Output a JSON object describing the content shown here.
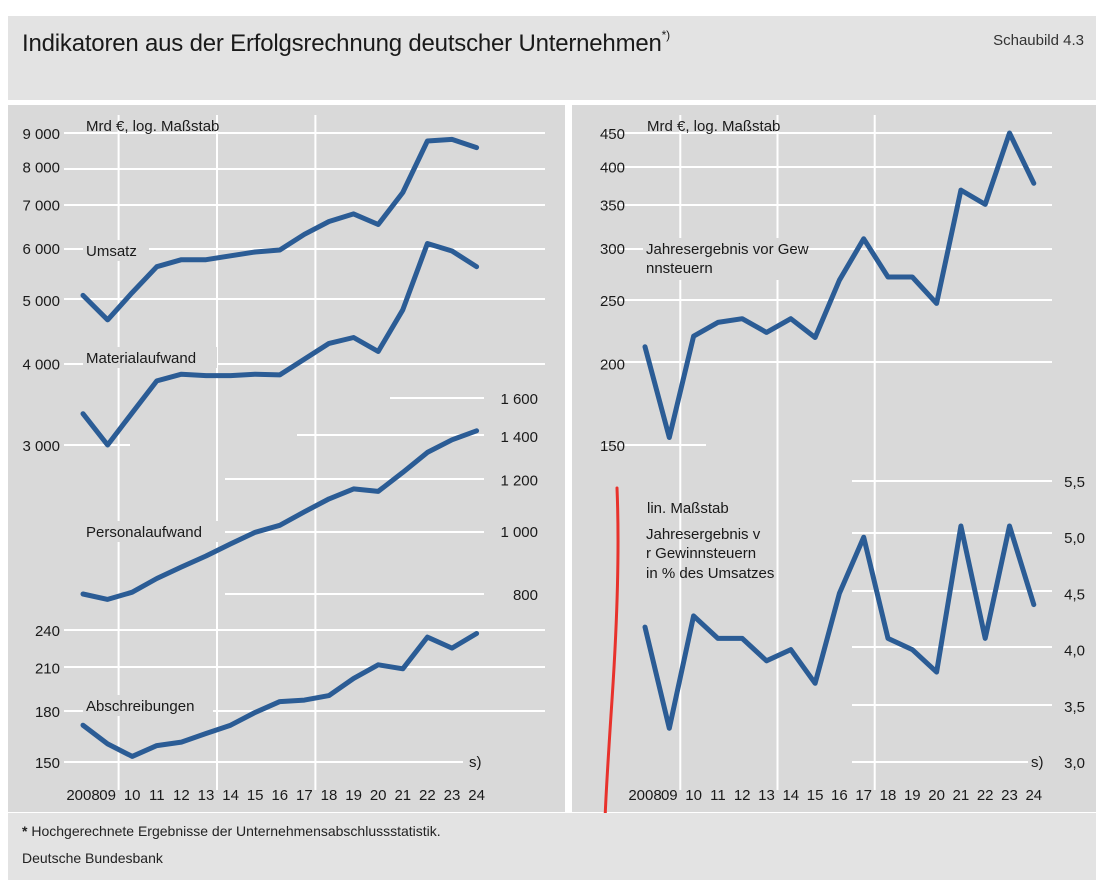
{
  "header": {
    "title": "Indikatoren aus der Erfolgsrechnung deutscher Unternehmen",
    "title_sup": "*)",
    "figure_no": "Schaubild 4.3"
  },
  "footer": {
    "note_star": "*",
    "note": "Hochgerechnete Ergebnisse der Unternehmensabschlussstatistik.",
    "source": "Deutsche Bundesbank"
  },
  "colors": {
    "series": "#2b5c95",
    "grid": "#ffffff",
    "panel": "#d9d9d9",
    "header": "#e3e3e3",
    "annotation_mark": "#e8322c"
  },
  "chart_data": [
    {
      "id": "left-top",
      "type": "line",
      "scale": "log",
      "unit_label": "Mrd €, log. Maßstab",
      "x": [
        "2008",
        "09",
        "10",
        "11",
        "12",
        "13",
        "14",
        "15",
        "16",
        "17",
        "18",
        "19",
        "20",
        "21",
        "22",
        "23",
        "24"
      ],
      "yticks": [
        "3 000",
        "4 000",
        "5 000",
        "6 000",
        "7 000",
        "8 000",
        "9 000"
      ],
      "ytick_values": [
        3000,
        4000,
        5000,
        6000,
        7000,
        8000,
        9000
      ],
      "ylim": [
        2650,
        9250
      ],
      "series": [
        {
          "name": "Umsatz",
          "values": [
            5080,
            4660,
            5130,
            5620,
            5760,
            5760,
            5840,
            5920,
            5960,
            6300,
            6590,
            6770,
            6520,
            7300,
            8750,
            8800,
            8550
          ]
        },
        {
          "name": "Materialaufwand",
          "values": [
            3350,
            3000,
            3360,
            3760,
            3850,
            3830,
            3830,
            3850,
            3840,
            4060,
            4290,
            4380,
            4170,
            4830,
            6100,
            5940,
            5620
          ]
        }
      ]
    },
    {
      "id": "left-mid",
      "type": "line",
      "scale": "log",
      "yticks": [
        "800",
        "1 000",
        "1 200",
        "1 400",
        "1 600"
      ],
      "ytick_values": [
        800,
        1000,
        1200,
        1400,
        1600
      ],
      "ylim": [
        710,
        1680
      ],
      "series": [
        {
          "name": "Personalaufwand",
          "values": [
            800,
            785,
            805,
            845,
            880,
            915,
            955,
            995,
            1020,
            1070,
            1120,
            1160,
            1150,
            1230,
            1320,
            1380,
            1425
          ]
        }
      ]
    },
    {
      "id": "left-bottom",
      "type": "line",
      "scale": "log",
      "yticks": [
        "150",
        "180",
        "210",
        "240"
      ],
      "ytick_values": [
        150,
        180,
        210,
        240
      ],
      "ylim": [
        146,
        262
      ],
      "series": [
        {
          "name": "Abschreibungen",
          "values": [
            171,
            160,
            153,
            159,
            161,
            166,
            171,
            179,
            186,
            187,
            190,
            202,
            212,
            209,
            234,
            225,
            237
          ]
        }
      ],
      "footnote": "s)"
    },
    {
      "id": "right-top",
      "type": "line",
      "scale": "log",
      "unit_label": "Mrd €, log. Maßstab",
      "yticks": [
        "150",
        "200",
        "250",
        "300",
        "350",
        "400",
        "450"
      ],
      "ytick_values": [
        150,
        200,
        250,
        300,
        350,
        400,
        450
      ],
      "ylim": [
        143,
        478
      ],
      "series": [
        {
          "name": "Jahresergebnis vor Gewinnsteuern",
          "values": [
            212,
            154,
            220,
            231,
            234,
            223,
            234,
            219,
            268,
            310,
            271,
            271,
            247,
            368,
            350,
            450,
            377
          ]
        }
      ]
    },
    {
      "id": "right-bottom",
      "type": "line",
      "scale": "linear",
      "unit_label": "lin. Maßstab",
      "yticks": [
        "3,0",
        "3,5",
        "4,0",
        "4,5",
        "5,0",
        "5,5"
      ],
      "ytick_values": [
        3.0,
        3.5,
        4.0,
        4.5,
        5.0,
        5.5
      ],
      "ylim": [
        3.0,
        5.5
      ],
      "series": [
        {
          "name": "Jahresergebnis vor Gewinnsteuern",
          "subname": "in % des Umsatzes",
          "values": [
            4.2,
            3.3,
            4.3,
            4.1,
            4.1,
            3.9,
            4.0,
            3.7,
            4.5,
            5.0,
            4.1,
            4.0,
            3.8,
            5.1,
            4.1,
            5.1,
            4.4
          ]
        }
      ],
      "footnote": "s)"
    }
  ]
}
